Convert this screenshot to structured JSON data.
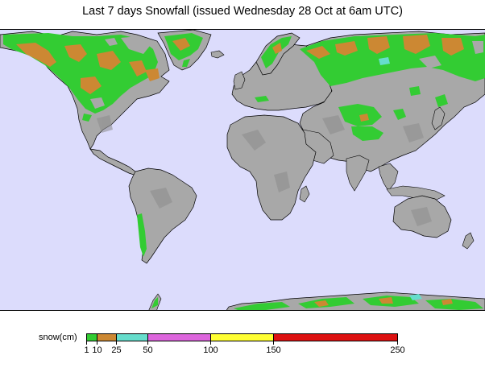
{
  "title": "Last 7 days Snowfall (issued Wednesday 28 Oct at 6am UTC)",
  "colors": {
    "ocean": "#dcdcfc",
    "land": "#a8a8a8",
    "land_shade": "#8c8c8c",
    "coast": "#000000",
    "snow_1_10": "#33cc33",
    "snow_10_25": "#cc8833",
    "snow_25_50": "#66ddcc",
    "snow_50_100": "#dd66dd",
    "snow_100_150": "#ffff33",
    "snow_150_250": "#dd1111"
  },
  "legend": {
    "label": "snow(cm)",
    "ticks": [
      "1",
      "10",
      "25",
      "50",
      "100",
      "150",
      "250"
    ],
    "bins": [
      {
        "from": "1",
        "to": "10",
        "color": "#33cc33"
      },
      {
        "from": "10",
        "to": "25",
        "color": "#cc8833"
      },
      {
        "from": "25",
        "to": "50",
        "color": "#66ddcc"
      },
      {
        "from": "50",
        "to": "100",
        "color": "#dd66dd"
      },
      {
        "from": "100",
        "to": "150",
        "color": "#ffff33"
      },
      {
        "from": "150",
        "to": "250",
        "color": "#dd1111"
      }
    ]
  }
}
